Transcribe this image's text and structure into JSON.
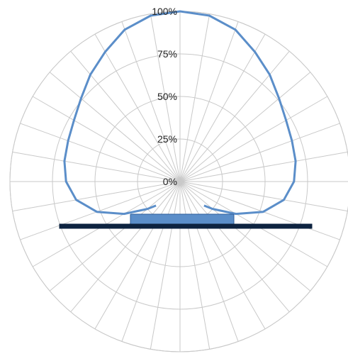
{
  "chart_data": {
    "type": "polar-line",
    "title": "",
    "radial_tick_labels": [
      "0%",
      "25%",
      "50%",
      "75%",
      "100%"
    ],
    "rlim": [
      0,
      100
    ],
    "angular_step_deg": 10,
    "grid": true,
    "series": [
      {
        "color": "#5b8ec9",
        "angles_deg": [
          -135,
          -130,
          -120,
          -110,
          -100,
          -90,
          -80,
          -70,
          -60,
          -50,
          -40,
          -30,
          -20,
          -10,
          0,
          10,
          20,
          30,
          40,
          50,
          60,
          70,
          80,
          90,
          100,
          110,
          120,
          130,
          135
        ],
        "values": [
          20,
          25,
          38,
          52,
          62,
          67,
          69,
          70,
          72,
          76,
          82,
          88,
          95,
          99,
          100,
          99,
          95,
          88,
          82,
          76,
          72,
          70,
          69,
          67,
          62,
          52,
          38,
          25,
          20
        ]
      }
    ],
    "shapes": {
      "luminaire_body_color": "#5b8ec9",
      "luminaire_base_color": "#0d2340"
    }
  }
}
